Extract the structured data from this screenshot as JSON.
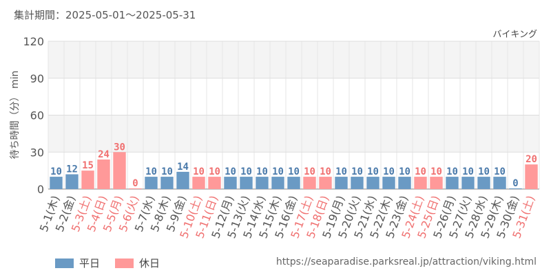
{
  "header": {
    "period_label": "集計期間：2025-05-01～2025-05-31",
    "attraction_name": "バイキング"
  },
  "legend": {
    "weekday_label": "平日",
    "holiday_label": "休日"
  },
  "source_url": "https://seaparadise.parksreal.jp/attraction/viking.html",
  "colors": {
    "weekday": "#6a9ac4",
    "holiday": "#ff9999",
    "weekday_text": "#4a7aaa",
    "holiday_text": "#f07070"
  },
  "chart_data": {
    "type": "bar",
    "title": "",
    "xlabel": "",
    "ylabel": "待ち時間（分） min",
    "ylim": [
      0,
      120
    ],
    "yticks": [
      0,
      30,
      60,
      90,
      120
    ],
    "grid": true,
    "legend_position": "bottom-left",
    "categories": [
      "5-1(木)",
      "5-2(金)",
      "5-3(土)",
      "5-4(日)",
      "5-5(月)",
      "5-6(火)",
      "5-7(水)",
      "5-8(木)",
      "5-9(金)",
      "5-10(土)",
      "5-11(日)",
      "5-12(月)",
      "5-13(火)",
      "5-14(水)",
      "5-15(木)",
      "5-16(金)",
      "5-17(土)",
      "5-18(日)",
      "5-19(月)",
      "5-20(火)",
      "5-21(水)",
      "5-22(木)",
      "5-23(金)",
      "5-24(土)",
      "5-25(日)",
      "5-26(月)",
      "5-27(火)",
      "5-28(水)",
      "5-29(木)",
      "5-30(金)",
      "5-31(土)"
    ],
    "values": [
      10,
      12,
      15,
      24,
      30,
      0,
      10,
      10,
      14,
      10,
      10,
      10,
      10,
      10,
      10,
      10,
      10,
      10,
      10,
      10,
      10,
      10,
      10,
      10,
      10,
      10,
      10,
      10,
      10,
      0,
      20
    ],
    "day_type": [
      "平日",
      "平日",
      "休日",
      "休日",
      "休日",
      "休日",
      "平日",
      "平日",
      "平日",
      "休日",
      "休日",
      "平日",
      "平日",
      "平日",
      "平日",
      "平日",
      "休日",
      "休日",
      "平日",
      "平日",
      "平日",
      "平日",
      "平日",
      "休日",
      "休日",
      "平日",
      "平日",
      "平日",
      "平日",
      "平日",
      "休日"
    ]
  }
}
